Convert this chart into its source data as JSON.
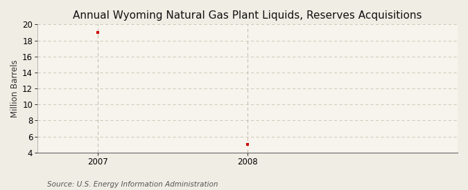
{
  "title": "Annual Wyoming Natural Gas Plant Liquids, Reserves Acquisitions",
  "ylabel": "Million Barrels",
  "source_text": "Source: U.S. Energy Information Administration",
  "x_values": [
    2007,
    2008
  ],
  "y_values": [
    19.0,
    5.0
  ],
  "xlim": [
    2006.6,
    2009.4
  ],
  "ylim": [
    4,
    20
  ],
  "yticks": [
    4,
    6,
    8,
    10,
    12,
    14,
    16,
    18,
    20
  ],
  "xticks": [
    2007,
    2008
  ],
  "background_color": "#f0ede4",
  "plot_bg_color": "#f7f4ed",
  "marker_color": "#cc0000",
  "grid_color": "#c8c0b0",
  "vline_color": "#c0b8a8",
  "title_fontsize": 11,
  "label_fontsize": 8.5,
  "tick_fontsize": 8.5,
  "source_fontsize": 7.5
}
